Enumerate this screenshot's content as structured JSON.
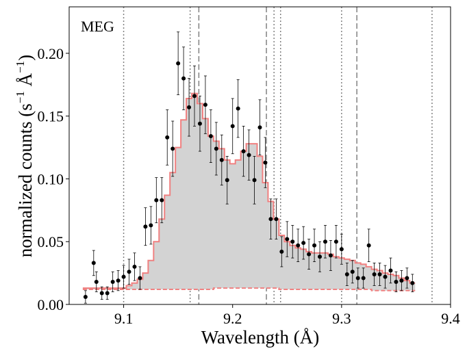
{
  "chart_data": {
    "type": "line",
    "panel_label": "MEG",
    "xlabel": "Wavelength (Å)",
    "ylabel_main": "normalized counts (s",
    "ylabel_sup1": "−1",
    "ylabel_mid": " Å",
    "ylabel_sup2": "−1",
    "ylabel_close": ")",
    "xlim": [
      9.05,
      9.4
    ],
    "ylim": [
      0.0,
      0.237
    ],
    "xticks": [
      9.1,
      9.2,
      9.3,
      9.4
    ],
    "xtick_labels": [
      "9.1",
      "9.2",
      "9.3",
      "9.4"
    ],
    "yticks": [
      0.0,
      0.05,
      0.1,
      0.15,
      0.2
    ],
    "ytick_labels": [
      "0.00",
      "0.05",
      "0.10",
      "0.15",
      "0.20"
    ],
    "dotted_lines": [
      9.1,
      9.161,
      9.238,
      9.244,
      9.3,
      9.383
    ],
    "dashed_lines": [
      9.169,
      9.231,
      9.314
    ],
    "colors": {
      "model": "#f08080",
      "fill": "#d3d3d3",
      "data": "#000000",
      "lines": "#808080"
    },
    "bin_edges": [
      9.0625,
      9.0675,
      9.0725,
      9.0775,
      9.0825,
      9.0875,
      9.0925,
      9.0975,
      9.1025,
      9.1075,
      9.1125,
      9.1175,
      9.1225,
      9.1275,
      9.1325,
      9.1375,
      9.1425,
      9.1475,
      9.1525,
      9.1575,
      9.1625,
      9.1675,
      9.1725,
      9.1775,
      9.1825,
      9.1875,
      9.1925,
      9.1975,
      9.2025,
      9.2075,
      9.2125,
      9.2175,
      9.2225,
      9.2275,
      9.2325,
      9.2375,
      9.2425,
      9.2475,
      9.2525,
      9.2575,
      9.2625,
      9.2675,
      9.2725,
      9.2775,
      9.2825,
      9.2875,
      9.2925,
      9.2975,
      9.3025,
      9.3075,
      9.3125,
      9.3175,
      9.3225,
      9.3275,
      9.3325,
      9.3375,
      9.3425,
      9.3475,
      9.3525,
      9.3575,
      9.3625,
      9.3675
    ],
    "model": [
      0.013,
      0.013,
      0.013,
      0.013,
      0.013,
      0.013,
      0.013,
      0.013,
      0.015,
      0.017,
      0.02,
      0.025,
      0.035,
      0.05,
      0.068,
      0.087,
      0.105,
      0.125,
      0.147,
      0.164,
      0.168,
      0.16,
      0.148,
      0.134,
      0.13,
      0.124,
      0.115,
      0.112,
      0.115,
      0.122,
      0.128,
      0.128,
      0.118,
      0.097,
      0.082,
      0.068,
      0.055,
      0.05,
      0.047,
      0.045,
      0.044,
      0.042,
      0.041,
      0.041,
      0.041,
      0.04,
      0.038,
      0.037,
      0.036,
      0.035,
      0.033,
      0.032,
      0.03,
      0.028,
      0.027,
      0.025,
      0.024,
      0.023,
      0.021,
      0.019,
      0.017
    ],
    "background": [
      0.012,
      0.012,
      0.012,
      0.012,
      0.012,
      0.012,
      0.012,
      0.012,
      0.012,
      0.012,
      0.012,
      0.012,
      0.012,
      0.012,
      0.012,
      0.012,
      0.012,
      0.012,
      0.012,
      0.012,
      0.012,
      0.012,
      0.012,
      0.012,
      0.013,
      0.013,
      0.013,
      0.013,
      0.013,
      0.013,
      0.013,
      0.013,
      0.013,
      0.013,
      0.013,
      0.013,
      0.012,
      0.012,
      0.012,
      0.012,
      0.012,
      0.012,
      0.012,
      0.012,
      0.012,
      0.012,
      0.012,
      0.012,
      0.012,
      0.012,
      0.012,
      0.012,
      0.012,
      0.011,
      0.011,
      0.011,
      0.011,
      0.011,
      0.011,
      0.011,
      0.011
    ],
    "points": [
      {
        "x": 9.065,
        "y": 0.006,
        "err": 0.005
      },
      {
        "x": 9.0725,
        "y": 0.033,
        "err": 0.01
      },
      {
        "x": 9.075,
        "y": 0.018,
        "err": 0.008
      },
      {
        "x": 9.08,
        "y": 0.009,
        "err": 0.005
      },
      {
        "x": 9.085,
        "y": 0.009,
        "err": 0.005
      },
      {
        "x": 9.09,
        "y": 0.018,
        "err": 0.008
      },
      {
        "x": 9.095,
        "y": 0.019,
        "err": 0.008
      },
      {
        "x": 9.1,
        "y": 0.022,
        "err": 0.009
      },
      {
        "x": 9.105,
        "y": 0.026,
        "err": 0.01
      },
      {
        "x": 9.11,
        "y": 0.03,
        "err": 0.011
      },
      {
        "x": 9.115,
        "y": 0.021,
        "err": 0.009
      },
      {
        "x": 9.12,
        "y": 0.062,
        "err": 0.015
      },
      {
        "x": 9.125,
        "y": 0.063,
        "err": 0.015
      },
      {
        "x": 9.13,
        "y": 0.083,
        "err": 0.018
      },
      {
        "x": 9.135,
        "y": 0.083,
        "err": 0.018
      },
      {
        "x": 9.14,
        "y": 0.133,
        "err": 0.022
      },
      {
        "x": 9.145,
        "y": 0.124,
        "err": 0.022
      },
      {
        "x": 9.15,
        "y": 0.192,
        "err": 0.025
      },
      {
        "x": 9.155,
        "y": 0.18,
        "err": 0.025
      },
      {
        "x": 9.16,
        "y": 0.157,
        "err": 0.023
      },
      {
        "x": 9.165,
        "y": 0.166,
        "err": 0.024
      },
      {
        "x": 9.17,
        "y": 0.144,
        "err": 0.022
      },
      {
        "x": 9.175,
        "y": 0.159,
        "err": 0.023
      },
      {
        "x": 9.18,
        "y": 0.134,
        "err": 0.021
      },
      {
        "x": 9.185,
        "y": 0.124,
        "err": 0.021
      },
      {
        "x": 9.19,
        "y": 0.115,
        "err": 0.02
      },
      {
        "x": 9.195,
        "y": 0.099,
        "err": 0.019
      },
      {
        "x": 9.2,
        "y": 0.142,
        "err": 0.022
      },
      {
        "x": 9.205,
        "y": 0.156,
        "err": 0.023
      },
      {
        "x": 9.21,
        "y": 0.122,
        "err": 0.02
      },
      {
        "x": 9.215,
        "y": 0.119,
        "err": 0.02
      },
      {
        "x": 9.22,
        "y": 0.099,
        "err": 0.019
      },
      {
        "x": 9.225,
        "y": 0.141,
        "err": 0.022
      },
      {
        "x": 9.23,
        "y": 0.113,
        "err": 0.02
      },
      {
        "x": 9.235,
        "y": 0.068,
        "err": 0.016
      },
      {
        "x": 9.24,
        "y": 0.068,
        "err": 0.016
      },
      {
        "x": 9.245,
        "y": 0.042,
        "err": 0.012
      },
      {
        "x": 9.25,
        "y": 0.052,
        "err": 0.014
      },
      {
        "x": 9.255,
        "y": 0.05,
        "err": 0.013
      },
      {
        "x": 9.26,
        "y": 0.047,
        "err": 0.013
      },
      {
        "x": 9.265,
        "y": 0.049,
        "err": 0.013
      },
      {
        "x": 9.27,
        "y": 0.04,
        "err": 0.012
      },
      {
        "x": 9.275,
        "y": 0.047,
        "err": 0.013
      },
      {
        "x": 9.28,
        "y": 0.038,
        "err": 0.012
      },
      {
        "x": 9.285,
        "y": 0.05,
        "err": 0.013
      },
      {
        "x": 9.29,
        "y": 0.039,
        "err": 0.012
      },
      {
        "x": 9.295,
        "y": 0.05,
        "err": 0.013
      },
      {
        "x": 9.3,
        "y": 0.044,
        "err": 0.012
      },
      {
        "x": 9.305,
        "y": 0.024,
        "err": 0.009
      },
      {
        "x": 9.31,
        "y": 0.026,
        "err": 0.009
      },
      {
        "x": 9.315,
        "y": 0.021,
        "err": 0.008
      },
      {
        "x": 9.32,
        "y": 0.021,
        "err": 0.008
      },
      {
        "x": 9.325,
        "y": 0.047,
        "err": 0.013
      },
      {
        "x": 9.33,
        "y": 0.024,
        "err": 0.009
      },
      {
        "x": 9.335,
        "y": 0.024,
        "err": 0.009
      },
      {
        "x": 9.34,
        "y": 0.022,
        "err": 0.009
      },
      {
        "x": 9.345,
        "y": 0.027,
        "err": 0.01
      },
      {
        "x": 9.35,
        "y": 0.018,
        "err": 0.008
      },
      {
        "x": 9.355,
        "y": 0.019,
        "err": 0.008
      },
      {
        "x": 9.36,
        "y": 0.021,
        "err": 0.008
      },
      {
        "x": 9.365,
        "y": 0.017,
        "err": 0.007
      }
    ]
  }
}
